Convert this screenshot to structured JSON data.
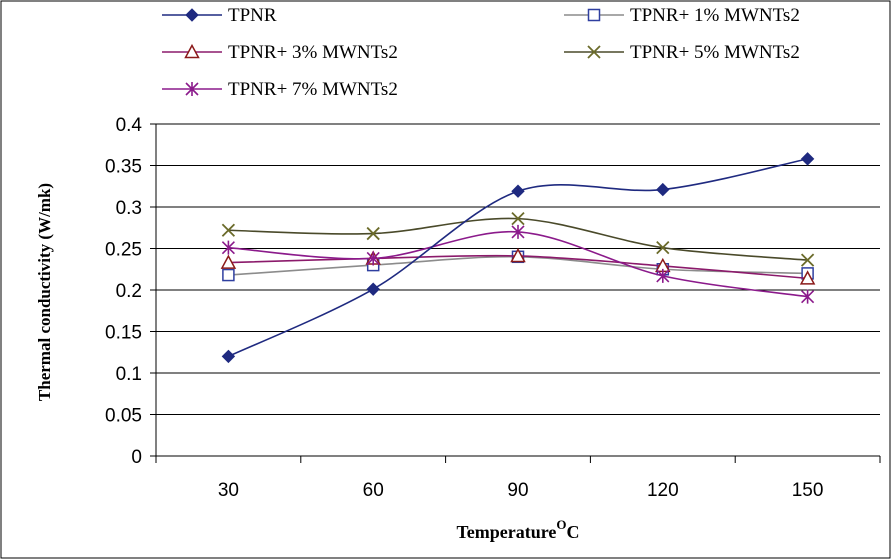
{
  "chart_data": {
    "type": "line",
    "title": "",
    "xlabel": "Temperature",
    "xlabel_sup": "O",
    "xlabel_suffix": "C",
    "ylabel": "Thermal conductivity (W/mk)",
    "categories": [
      "30",
      "60",
      "90",
      "120",
      "150"
    ],
    "x": [
      30,
      60,
      90,
      120,
      150
    ],
    "ylim": [
      0,
      0.4
    ],
    "yticks": [
      {
        "value": 0,
        "label": "0"
      },
      {
        "value": 0.05,
        "label": "0.05"
      },
      {
        "value": 0.1,
        "label": "0.1"
      },
      {
        "value": 0.15,
        "label": "0.15"
      },
      {
        "value": 0.2,
        "label": "0.2"
      },
      {
        "value": 0.25,
        "label": "0.25"
      },
      {
        "value": 0.3,
        "label": "0.3"
      },
      {
        "value": 0.35,
        "label": "0.35"
      },
      {
        "value": 0.4,
        "label": "0.4"
      }
    ],
    "grid": "horizontal",
    "legend_position": "top",
    "smooth": true,
    "series": [
      {
        "name": "TPNR",
        "values": [
          0.12,
          0.201,
          0.319,
          0.321,
          0.358
        ],
        "color": "#1f2a80",
        "marker": "diamond"
      },
      {
        "name": "TPNR+ 1% MWNTs2",
        "values": [
          0.218,
          0.23,
          0.24,
          0.225,
          0.22
        ],
        "color": "#8c8c8c",
        "marker": "square",
        "marker_color": "#2f3fa0"
      },
      {
        "name": "TPNR+ 3% MWNTs2",
        "values": [
          0.233,
          0.238,
          0.241,
          0.229,
          0.214
        ],
        "color": "#8b1a6b",
        "marker": "triangle",
        "marker_color": "#8b1a1a"
      },
      {
        "name": "TPNR+ 5% MWNTs2",
        "values": [
          0.272,
          0.268,
          0.286,
          0.251,
          0.236
        ],
        "color": "#4a4a2a",
        "marker": "x",
        "marker_color": "#6b6b2a"
      },
      {
        "name": "TPNR+ 7% MWNTs2",
        "values": [
          0.251,
          0.238,
          0.27,
          0.217,
          0.192
        ],
        "color": "#8b1a8b",
        "marker": "asterisk"
      }
    ]
  }
}
